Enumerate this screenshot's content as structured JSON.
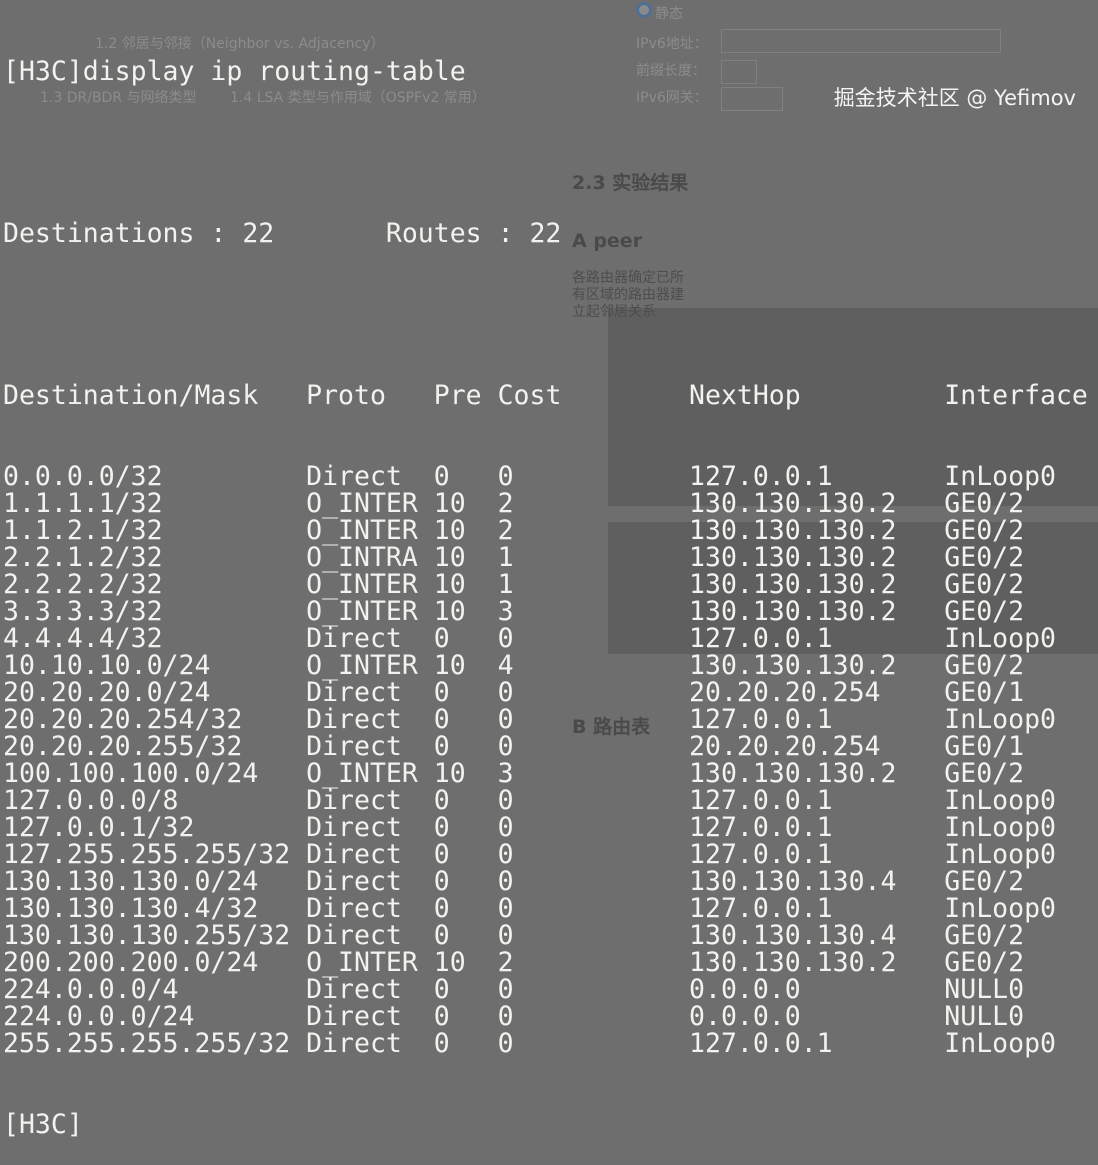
{
  "background_document": {
    "radio_label": "静态",
    "form_labels": [
      "IPv6地址：",
      "前缀长度：",
      "IPv6网关："
    ],
    "toc_items": [
      "1.2 邻居与邻接（Neighbor vs. Adjacency）",
      "1.3 DR/BDR 与网络类型",
      "1.4 LSA 类型与作用域（OSPFv2 常用）"
    ],
    "headings": [
      "2.3 实验结果",
      "A peer",
      "B 路由表"
    ],
    "paragraph": "各路由器确定已所有区域的路由器建立起邻居关系"
  },
  "terminal": {
    "command": "[H3C]display ip routing-table",
    "summary": {
      "destinations_label": "Destinations : 22",
      "routes_label": "Routes : 22"
    },
    "columns": [
      "Destination/Mask",
      "Proto",
      "Pre",
      "Cost",
      "NextHop",
      "Interface"
    ],
    "rows": [
      [
        "0.0.0.0/32",
        "Direct",
        "0",
        "0",
        "127.0.0.1",
        "InLoop0"
      ],
      [
        "1.1.1.1/32",
        "O_INTER",
        "10",
        "2",
        "130.130.130.2",
        "GE0/2"
      ],
      [
        "1.1.2.1/32",
        "O_INTER",
        "10",
        "2",
        "130.130.130.2",
        "GE0/2"
      ],
      [
        "2.2.1.2/32",
        "O_INTRA",
        "10",
        "1",
        "130.130.130.2",
        "GE0/2"
      ],
      [
        "2.2.2.2/32",
        "O_INTER",
        "10",
        "1",
        "130.130.130.2",
        "GE0/2"
      ],
      [
        "3.3.3.3/32",
        "O_INTER",
        "10",
        "3",
        "130.130.130.2",
        "GE0/2"
      ],
      [
        "4.4.4.4/32",
        "Direct",
        "0",
        "0",
        "127.0.0.1",
        "InLoop0"
      ],
      [
        "10.10.10.0/24",
        "O_INTER",
        "10",
        "4",
        "130.130.130.2",
        "GE0/2"
      ],
      [
        "20.20.20.0/24",
        "Direct",
        "0",
        "0",
        "20.20.20.254",
        "GE0/1"
      ],
      [
        "20.20.20.254/32",
        "Direct",
        "0",
        "0",
        "127.0.0.1",
        "InLoop0"
      ],
      [
        "20.20.20.255/32",
        "Direct",
        "0",
        "0",
        "20.20.20.254",
        "GE0/1"
      ],
      [
        "100.100.100.0/24",
        "O_INTER",
        "10",
        "3",
        "130.130.130.2",
        "GE0/2"
      ],
      [
        "127.0.0.0/8",
        "Direct",
        "0",
        "0",
        "127.0.0.1",
        "InLoop0"
      ],
      [
        "127.0.0.1/32",
        "Direct",
        "0",
        "0",
        "127.0.0.1",
        "InLoop0"
      ],
      [
        "127.255.255.255/32",
        "Direct",
        "0",
        "0",
        "127.0.0.1",
        "InLoop0"
      ],
      [
        "130.130.130.0/24",
        "Direct",
        "0",
        "0",
        "130.130.130.4",
        "GE0/2"
      ],
      [
        "130.130.130.4/32",
        "Direct",
        "0",
        "0",
        "127.0.0.1",
        "InLoop0"
      ],
      [
        "130.130.130.255/32",
        "Direct",
        "0",
        "0",
        "130.130.130.4",
        "GE0/2"
      ],
      [
        "200.200.200.0/24",
        "O_INTER",
        "10",
        "2",
        "130.130.130.2",
        "GE0/2"
      ],
      [
        "224.0.0.0/4",
        "Direct",
        "0",
        "0",
        "0.0.0.0",
        "NULL0"
      ],
      [
        "224.0.0.0/24",
        "Direct",
        "0",
        "0",
        "0.0.0.0",
        "NULL0"
      ],
      [
        "255.255.255.255/32",
        "Direct",
        "0",
        "0",
        "127.0.0.1",
        "InLoop0"
      ]
    ],
    "prompt": "[H3C]"
  },
  "watermark": "掘金技术社区 @ Yefimov"
}
